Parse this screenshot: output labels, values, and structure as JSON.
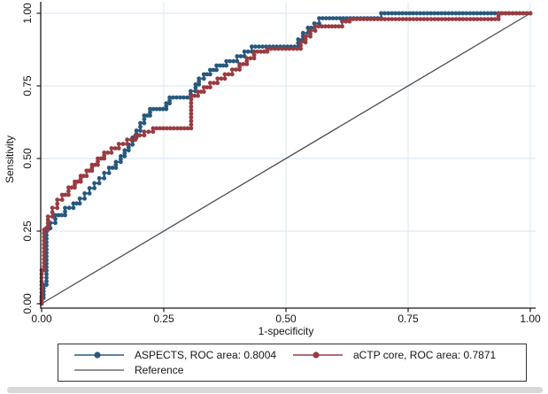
{
  "figure": {
    "x_axis_title": "1-specificity",
    "y_axis_title": "Sensitivity"
  },
  "legend": {
    "entries": [
      {
        "label": "ASPECTS, ROC area: 0.8004",
        "color": "#27587e",
        "marker": "circle"
      },
      {
        "label": "aCTP core, ROC area: 0.7871",
        "color": "#993b40",
        "marker": "circle"
      },
      {
        "label": "Reference",
        "color": "#4d4d4d",
        "marker": "none"
      }
    ]
  },
  "chart_data": {
    "type": "line",
    "subtype": "roc_step_curves",
    "title": "",
    "xlabel": "1-specificity",
    "ylabel": "Sensitivity",
    "xlim": [
      0,
      1
    ],
    "ylim": [
      0,
      1
    ],
    "x_ticks": [
      "0.00",
      "0.25",
      "0.50",
      "0.75",
      "1.00"
    ],
    "y_ticks": [
      "0.00",
      "0.25",
      "0.50",
      "0.75",
      "1.00"
    ],
    "grid": true,
    "grid_color": "#dfebf3",
    "axis_color": "#1a1a1a",
    "legend_position": "bottom",
    "series": [
      {
        "name": "ASPECTS",
        "roc_area": 0.8004,
        "color": "#27587e",
        "points": [
          [
            0.0,
            0.0
          ],
          [
            0.0,
            0.02
          ],
          [
            0.004,
            0.02
          ],
          [
            0.004,
            0.065
          ],
          [
            0.01,
            0.065
          ],
          [
            0.01,
            0.26
          ],
          [
            0.018,
            0.26
          ],
          [
            0.018,
            0.278
          ],
          [
            0.028,
            0.278
          ],
          [
            0.028,
            0.305
          ],
          [
            0.048,
            0.305
          ],
          [
            0.048,
            0.33
          ],
          [
            0.065,
            0.33
          ],
          [
            0.065,
            0.345
          ],
          [
            0.078,
            0.345
          ],
          [
            0.078,
            0.362
          ],
          [
            0.088,
            0.362
          ],
          [
            0.088,
            0.38
          ],
          [
            0.098,
            0.38
          ],
          [
            0.098,
            0.398
          ],
          [
            0.108,
            0.398
          ],
          [
            0.108,
            0.415
          ],
          [
            0.118,
            0.415
          ],
          [
            0.118,
            0.432
          ],
          [
            0.128,
            0.432
          ],
          [
            0.128,
            0.45
          ],
          [
            0.138,
            0.45
          ],
          [
            0.138,
            0.468
          ],
          [
            0.152,
            0.468
          ],
          [
            0.152,
            0.488
          ],
          [
            0.162,
            0.488
          ],
          [
            0.162,
            0.508
          ],
          [
            0.17,
            0.508
          ],
          [
            0.17,
            0.528
          ],
          [
            0.178,
            0.528
          ],
          [
            0.178,
            0.548
          ],
          [
            0.186,
            0.548
          ],
          [
            0.186,
            0.572
          ],
          [
            0.194,
            0.572
          ],
          [
            0.194,
            0.596
          ],
          [
            0.202,
            0.596
          ],
          [
            0.202,
            0.622
          ],
          [
            0.21,
            0.622
          ],
          [
            0.21,
            0.648
          ],
          [
            0.222,
            0.648
          ],
          [
            0.222,
            0.67
          ],
          [
            0.255,
            0.67
          ],
          [
            0.255,
            0.69
          ],
          [
            0.262,
            0.69
          ],
          [
            0.262,
            0.71
          ],
          [
            0.305,
            0.71
          ],
          [
            0.305,
            0.732
          ],
          [
            0.315,
            0.732
          ],
          [
            0.315,
            0.755
          ],
          [
            0.322,
            0.755
          ],
          [
            0.322,
            0.775
          ],
          [
            0.332,
            0.775
          ],
          [
            0.332,
            0.79
          ],
          [
            0.345,
            0.79
          ],
          [
            0.345,
            0.805
          ],
          [
            0.358,
            0.805
          ],
          [
            0.358,
            0.82
          ],
          [
            0.378,
            0.82
          ],
          [
            0.378,
            0.835
          ],
          [
            0.4,
            0.835
          ],
          [
            0.4,
            0.852
          ],
          [
            0.415,
            0.852
          ],
          [
            0.415,
            0.868
          ],
          [
            0.43,
            0.868
          ],
          [
            0.43,
            0.885
          ],
          [
            0.525,
            0.885
          ],
          [
            0.525,
            0.91
          ],
          [
            0.535,
            0.91
          ],
          [
            0.535,
            0.932
          ],
          [
            0.545,
            0.932
          ],
          [
            0.545,
            0.95
          ],
          [
            0.558,
            0.95
          ],
          [
            0.558,
            0.965
          ],
          [
            0.568,
            0.965
          ],
          [
            0.568,
            0.983
          ],
          [
            0.695,
            0.983
          ],
          [
            0.695,
            1.0
          ],
          [
            1.0,
            1.0
          ]
        ]
      },
      {
        "name": "aCTP core",
        "roc_area": 0.7871,
        "color": "#993b40",
        "points": [
          [
            0.0,
            0.0
          ],
          [
            0.0,
            0.115
          ],
          [
            0.005,
            0.115
          ],
          [
            0.005,
            0.255
          ],
          [
            0.013,
            0.255
          ],
          [
            0.013,
            0.3
          ],
          [
            0.022,
            0.3
          ],
          [
            0.022,
            0.33
          ],
          [
            0.032,
            0.33
          ],
          [
            0.032,
            0.358
          ],
          [
            0.042,
            0.358
          ],
          [
            0.042,
            0.375
          ],
          [
            0.055,
            0.375
          ],
          [
            0.055,
            0.4
          ],
          [
            0.068,
            0.4
          ],
          [
            0.068,
            0.42
          ],
          [
            0.08,
            0.42
          ],
          [
            0.08,
            0.44
          ],
          [
            0.092,
            0.44
          ],
          [
            0.092,
            0.458
          ],
          [
            0.103,
            0.458
          ],
          [
            0.103,
            0.478
          ],
          [
            0.115,
            0.478
          ],
          [
            0.115,
            0.5
          ],
          [
            0.128,
            0.5
          ],
          [
            0.128,
            0.52
          ],
          [
            0.143,
            0.52
          ],
          [
            0.143,
            0.535
          ],
          [
            0.158,
            0.535
          ],
          [
            0.158,
            0.55
          ],
          [
            0.175,
            0.55
          ],
          [
            0.175,
            0.565
          ],
          [
            0.192,
            0.565
          ],
          [
            0.192,
            0.58
          ],
          [
            0.21,
            0.58
          ],
          [
            0.21,
            0.592
          ],
          [
            0.228,
            0.592
          ],
          [
            0.228,
            0.604
          ],
          [
            0.306,
            0.604
          ],
          [
            0.306,
            0.716
          ],
          [
            0.32,
            0.716
          ],
          [
            0.32,
            0.73
          ],
          [
            0.332,
            0.73
          ],
          [
            0.332,
            0.745
          ],
          [
            0.345,
            0.745
          ],
          [
            0.345,
            0.76
          ],
          [
            0.36,
            0.76
          ],
          [
            0.36,
            0.775
          ],
          [
            0.375,
            0.775
          ],
          [
            0.375,
            0.79
          ],
          [
            0.39,
            0.79
          ],
          [
            0.39,
            0.806
          ],
          [
            0.405,
            0.806
          ],
          [
            0.405,
            0.825
          ],
          [
            0.42,
            0.825
          ],
          [
            0.42,
            0.845
          ],
          [
            0.435,
            0.845
          ],
          [
            0.435,
            0.868
          ],
          [
            0.462,
            0.868
          ],
          [
            0.462,
            0.878
          ],
          [
            0.53,
            0.878
          ],
          [
            0.53,
            0.9
          ],
          [
            0.54,
            0.9
          ],
          [
            0.54,
            0.92
          ],
          [
            0.55,
            0.92
          ],
          [
            0.55,
            0.94
          ],
          [
            0.56,
            0.94
          ],
          [
            0.56,
            0.955
          ],
          [
            0.615,
            0.955
          ],
          [
            0.615,
            0.972
          ],
          [
            0.63,
            0.972
          ],
          [
            0.63,
            0.98
          ],
          [
            0.935,
            0.98
          ],
          [
            0.935,
            1.0
          ],
          [
            1.0,
            1.0
          ]
        ]
      }
    ],
    "reference": {
      "name": "Reference",
      "color": "#4d4d4d",
      "points": [
        [
          0,
          0
        ],
        [
          1,
          1
        ]
      ]
    }
  }
}
